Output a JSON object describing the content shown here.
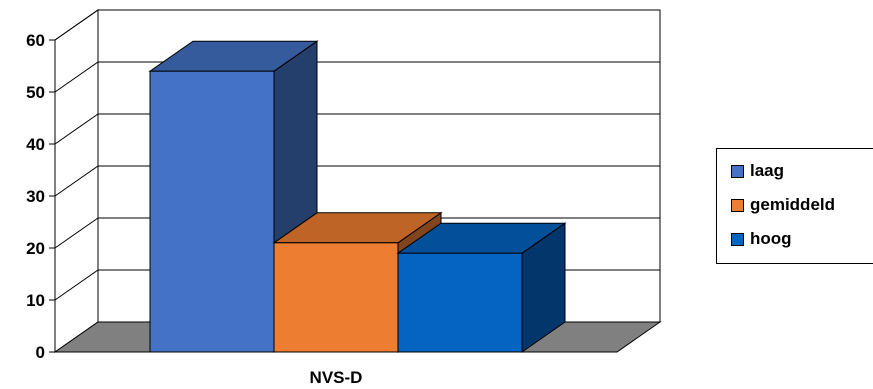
{
  "chart_data": {
    "type": "bar",
    "three_d": true,
    "categories": [
      "NVS-D"
    ],
    "series": [
      {
        "name": "laag",
        "values": [
          54
        ],
        "color": "#4472C4"
      },
      {
        "name": "gemiddeld",
        "values": [
          21
        ],
        "color": "#ED7D31"
      },
      {
        "name": "hoog",
        "values": [
          19
        ],
        "color": "#0563C1"
      }
    ],
    "ylim": [
      0,
      60
    ],
    "yticks": [
      "0",
      "10",
      "20",
      "30",
      "40",
      "50",
      "60"
    ],
    "grid": true,
    "legend_position": "right"
  }
}
